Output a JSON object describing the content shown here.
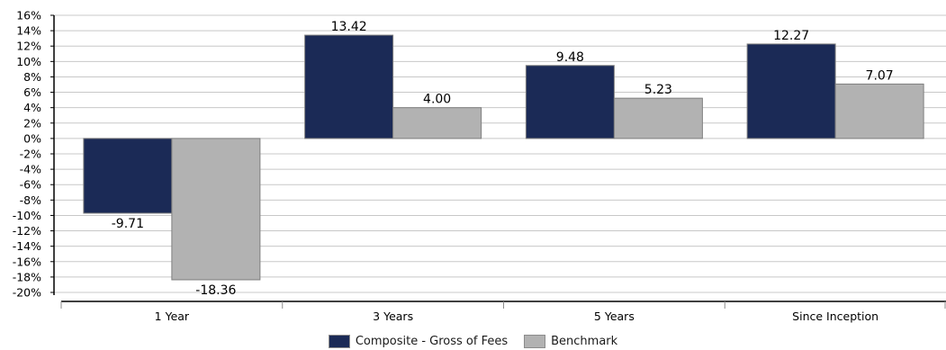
{
  "chart_data": {
    "type": "bar",
    "categories": [
      "1 Year",
      "3 Years",
      "5 Years",
      "Since Inception"
    ],
    "series": [
      {
        "name": "Composite - Gross of Fees",
        "color": "#1b2a56",
        "values": [
          -9.71,
          13.42,
          9.48,
          12.27
        ],
        "labels": [
          "-9.71",
          "13.42",
          "9.48",
          "12.27"
        ]
      },
      {
        "name": "Benchmark",
        "color": "#b2b2b2",
        "values": [
          -18.36,
          4.0,
          5.23,
          7.07
        ],
        "labels": [
          "-18.36",
          "4.00",
          "5.23",
          "7.07"
        ]
      }
    ],
    "ylim": [
      -20,
      16
    ],
    "ytick_step": 2,
    "ytick_labels": [
      "16%",
      "14%",
      "12%",
      "10%",
      "8%",
      "6%",
      "4%",
      "2%",
      "0%",
      "-2%",
      "-4%",
      "-6%",
      "-8%",
      "-10%",
      "-12%",
      "-14%",
      "-16%",
      "-18%",
      "-20%"
    ],
    "grid": true,
    "legend_position": "bottom-center",
    "title": "",
    "xlabel": "",
    "ylabel": ""
  }
}
